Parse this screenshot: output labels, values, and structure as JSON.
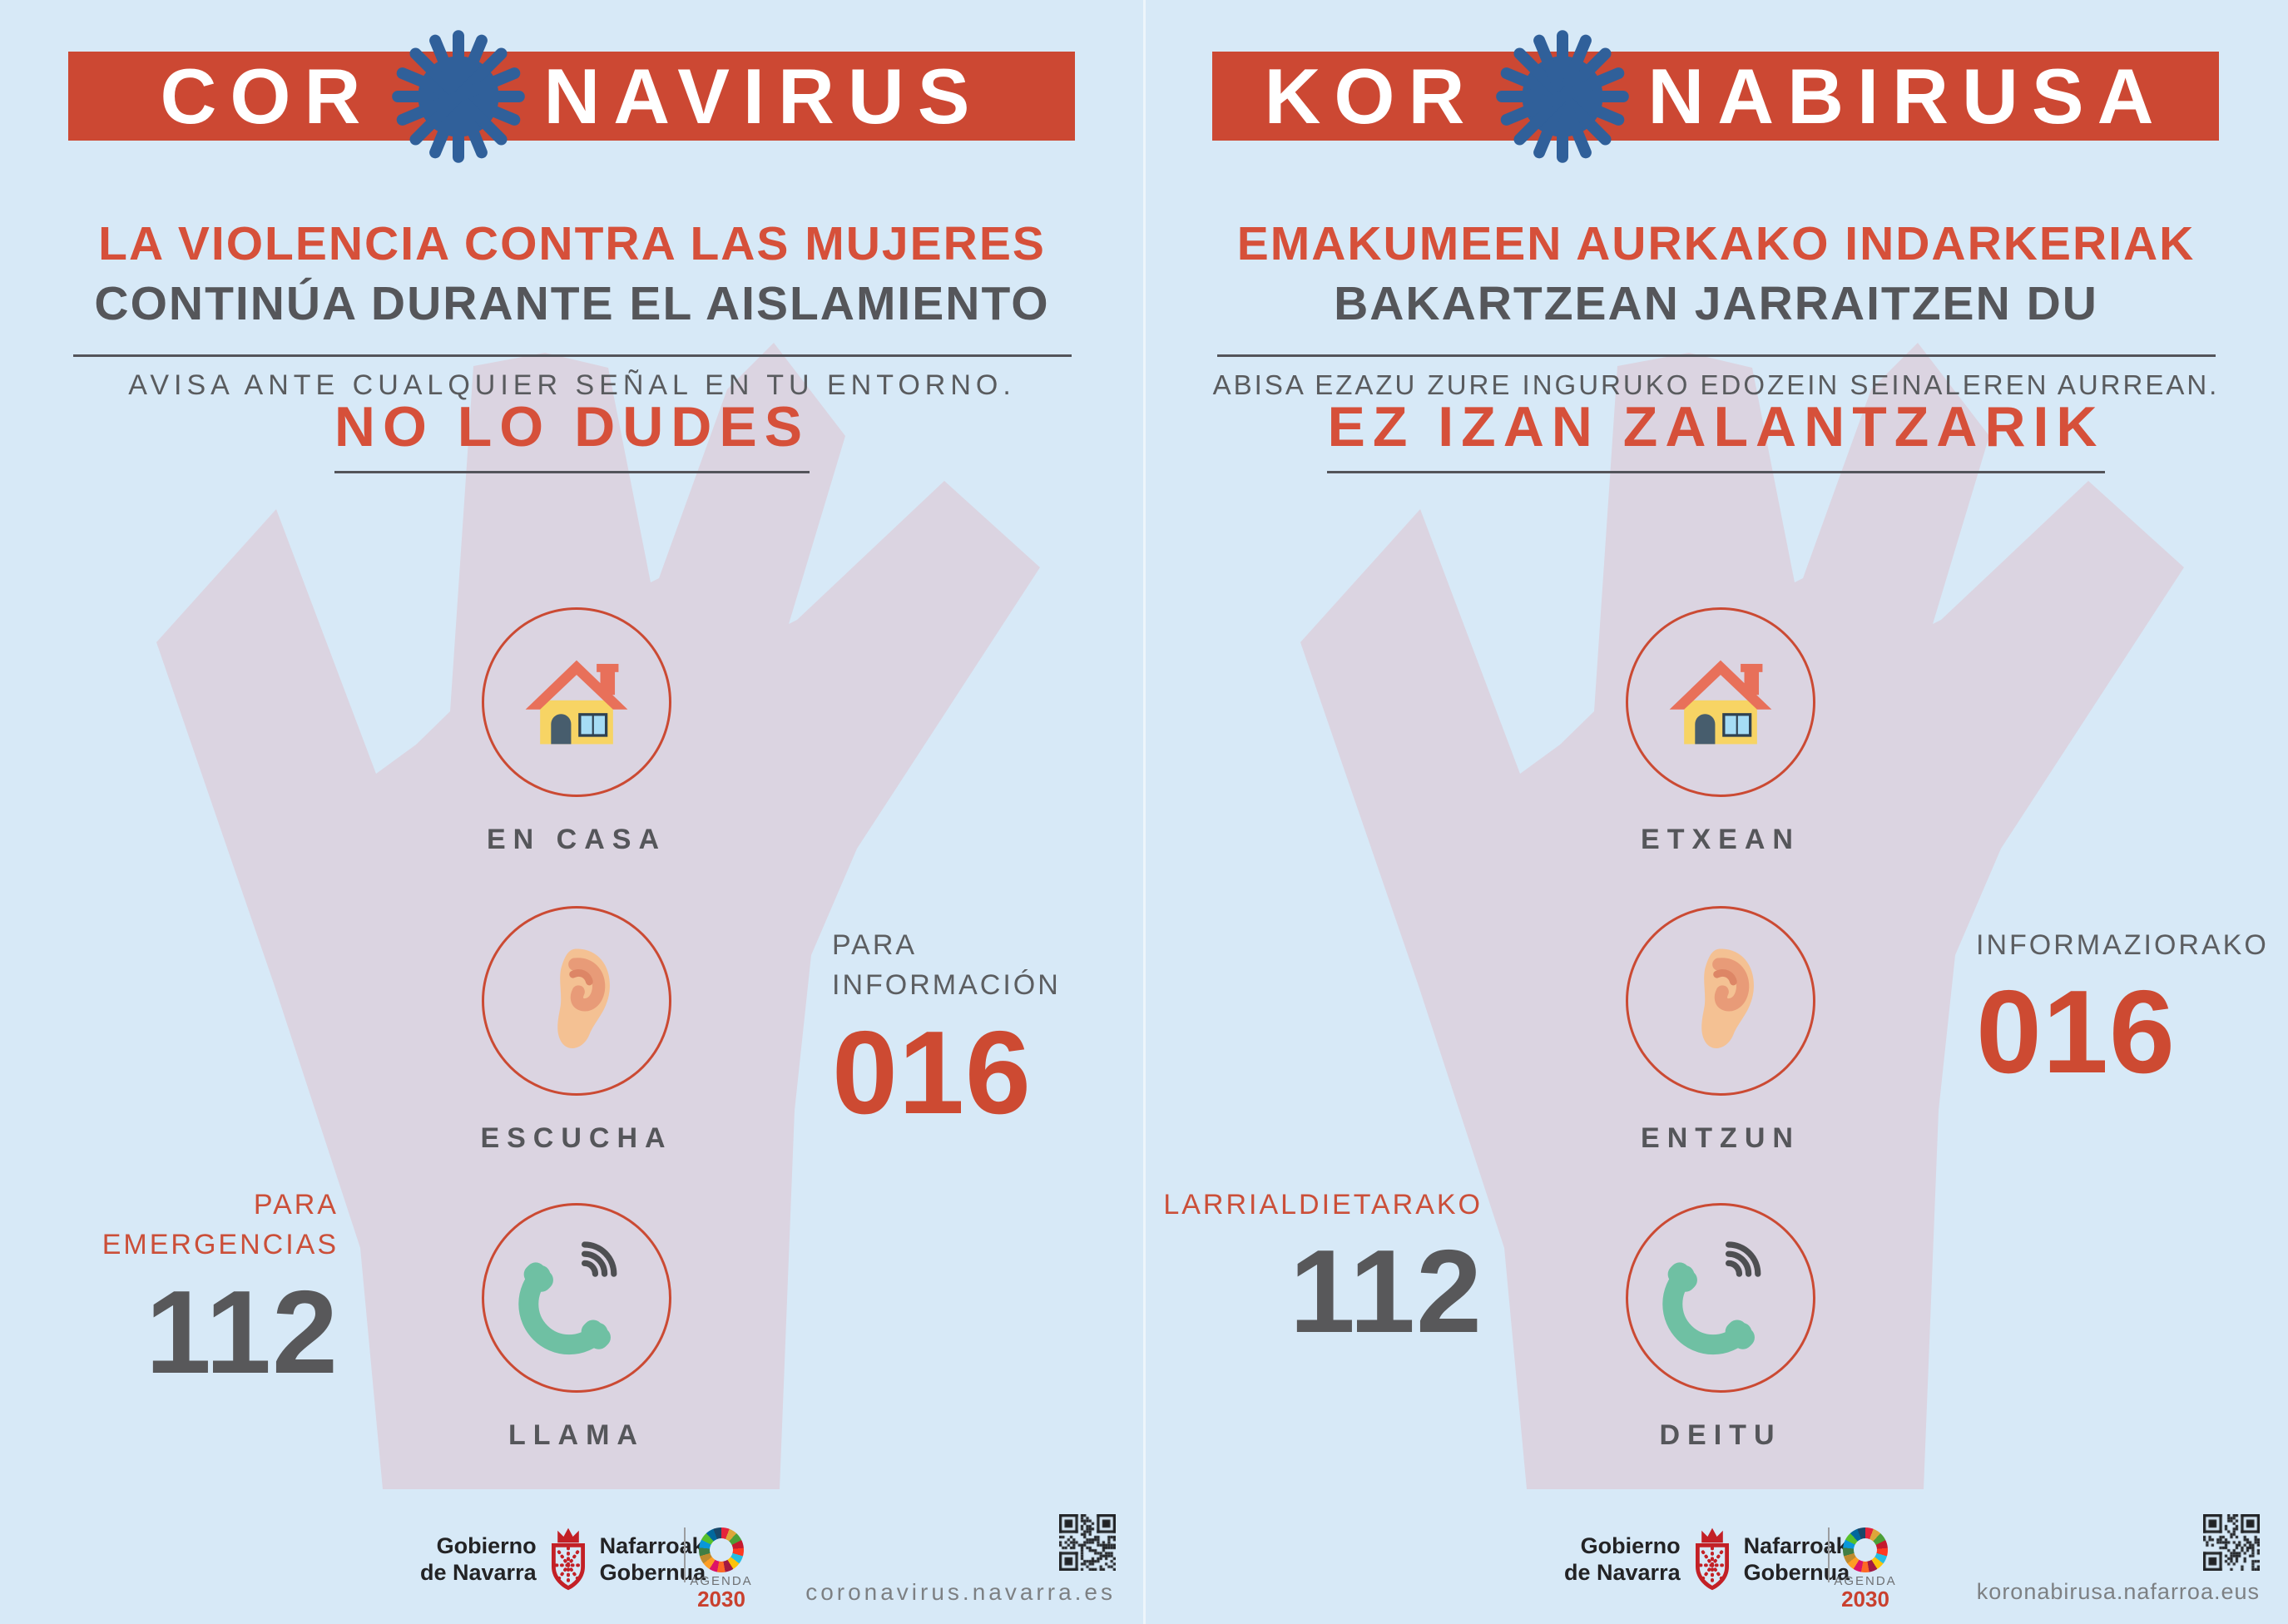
{
  "colors": {
    "background_blue": "#d7e9f7",
    "banner_red": "#cc4833",
    "accent_red": "#d6503a",
    "number_red": "#cd4a32",
    "number_gray": "#58585a",
    "text_dark_gray": "#55565a",
    "hand_lavender": "#dbd4e1",
    "virus_blue": "#30609a",
    "phone_teal": "#6fc0a3"
  },
  "posters": [
    {
      "lang": "es",
      "title_pre": "COR",
      "title_post": "NAVIRUS",
      "headline_red": "LA VIOLENCIA CONTRA LAS MUJERES",
      "headline_dark": "CONTINÚA DURANTE EL AISLAMIENTO",
      "subline": "AVISA ANTE CUALQUIER SEÑAL EN TU ENTORNO.",
      "cta": "NO LO DUDES",
      "steps": [
        {
          "icon": "house-icon",
          "label": "EN CASA"
        },
        {
          "icon": "ear-icon",
          "label": "ESCUCHA"
        },
        {
          "icon": "phone-icon",
          "label": "LLAMA"
        }
      ],
      "info": {
        "label_lines": [
          "PARA",
          "INFORMACIÓN"
        ],
        "number": "016"
      },
      "emergency": {
        "label_lines": [
          "PARA",
          "EMERGENCIAS"
        ],
        "number": "112"
      },
      "footer": {
        "gov_left": [
          "Gobierno",
          "de Navarra"
        ],
        "gov_right": [
          "Nafarroako",
          "Gobernua"
        ],
        "agenda_top": "AGENDA",
        "agenda_year": "2030",
        "url": "coronavirus.navarra.es"
      }
    },
    {
      "lang": "eu",
      "title_pre": "KOR",
      "title_post": "NABIRUSA",
      "headline_red": "EMAKUMEEN AURKAKO INDARKERIAK",
      "headline_dark": "BAKARTZEAN JARRAITZEN DU",
      "subline": "ABISA EZAZU ZURE INGURUKO EDOZEIN SEINALEREN AURREAN.",
      "cta": "EZ IZAN ZALANTZARIK",
      "steps": [
        {
          "icon": "house-icon",
          "label": "ETXEAN"
        },
        {
          "icon": "ear-icon",
          "label": "ENTZUN"
        },
        {
          "icon": "phone-icon",
          "label": "DEITU"
        }
      ],
      "info": {
        "label_lines": [
          "INFORMAZIORAKO"
        ],
        "number": "016"
      },
      "emergency": {
        "label_lines": [
          "LARRIALDIETARAKO"
        ],
        "number": "112"
      },
      "footer": {
        "gov_left": [
          "Gobierno",
          "de Navarra"
        ],
        "gov_right": [
          "Nafarroako",
          "Gobernua"
        ],
        "agenda_top": "AGENDA",
        "agenda_year": "2030",
        "url": "koronabirusa.nafarroa.eus"
      }
    }
  ]
}
